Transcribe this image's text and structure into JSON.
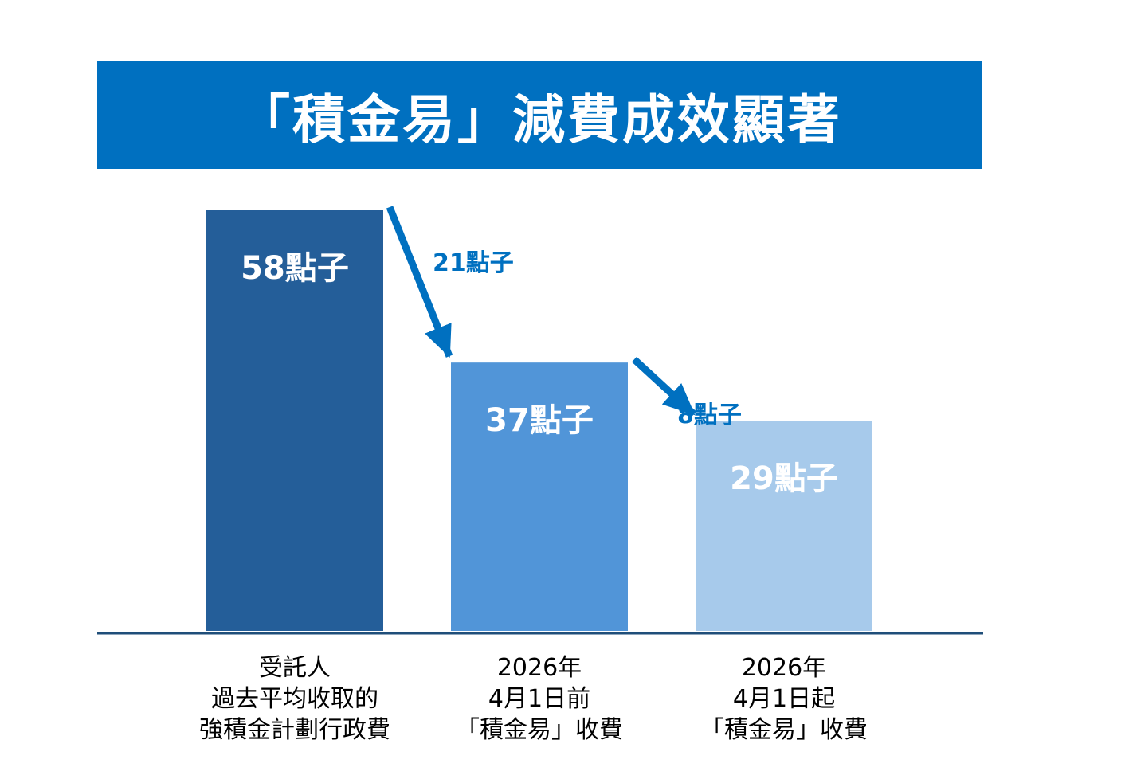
{
  "title": "「積金易」減費成效顯著",
  "colors": {
    "banner": "#0070c0",
    "axis": "#1f4e79",
    "arrow": "#0070c0"
  },
  "chart_data": {
    "type": "bar",
    "categories": [
      [
        "受託人",
        "過去平均收取的",
        "強積金計劃行政費"
      ],
      [
        "2026年",
        "4月1日前",
        "「積金易」收費"
      ],
      [
        "2026年",
        "4月1日起",
        "「積金易」收費"
      ]
    ],
    "values": [
      58,
      37,
      29
    ],
    "value_labels": [
      "58點子",
      "37點子",
      "29點子"
    ],
    "bar_colors": [
      "#245e99",
      "#5195d8",
      "#a7caeb"
    ],
    "reductions": [
      {
        "from": 0,
        "to": 1,
        "label": "21點子"
      },
      {
        "from": 1,
        "to": 2,
        "label": "8點子"
      }
    ],
    "ylim": [
      0,
      58
    ],
    "grid": false,
    "legend": "none"
  }
}
